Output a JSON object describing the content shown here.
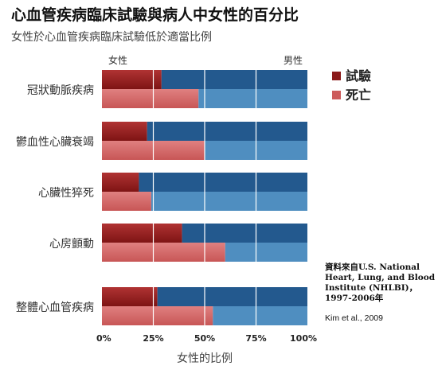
{
  "title": "心血管疾病臨床試驗與病人中女性的百分比",
  "subtitle": "女性於心血管疾病臨床試驗低於適當比例",
  "source_note": "資料來自U.S. National Heart, Lung, and Blood Institute (NHLBI)，1997-2006年",
  "credit": "Kim et al., 2009",
  "colors": {
    "trial_female": "#8b1a1a",
    "death_female": "#cd5c5c",
    "trial_male": "#23598e",
    "death_male": "#4f8ec0"
  },
  "chart_data": {
    "type": "bar",
    "orientation": "horizontal-stacked-100",
    "title": "心血管疾病臨床試驗與病人中女性的百分比",
    "subtitle": "女性於心血管疾病臨床試驗低於適當比例",
    "xlabel": "女性的比例",
    "end_label_left": "女性",
    "end_label_right": "男性",
    "xlim": [
      0,
      100
    ],
    "x_ticks": [
      "0%",
      "25%",
      "50%",
      "75%",
      "100%"
    ],
    "categories": [
      "冠狀動脈疾病",
      "鬱血性心臟衰竭",
      "心臟性猝死",
      "心房顫動",
      "整體心血管疾病"
    ],
    "series": [
      {
        "name": "試驗",
        "values": [
          29,
          22,
          18,
          39,
          27
        ]
      },
      {
        "name": "死亡",
        "values": [
          47,
          50,
          24,
          60,
          54
        ]
      }
    ],
    "legend_position": "right",
    "grid": true
  }
}
